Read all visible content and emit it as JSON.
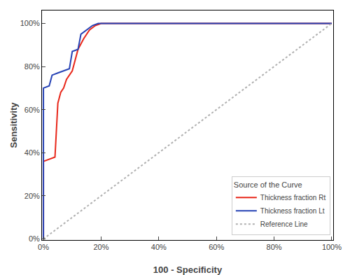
{
  "chart_data": {
    "type": "line",
    "xlabel": "100 - Specificity",
    "ylabel": "Sensitivity",
    "legend_title": "Source of the Curve",
    "series": [
      {
        "name": "Thickness fraction Rt",
        "color": "#e8271a",
        "line_style": "solid",
        "x": [
          0.0,
          0.0,
          0.04,
          0.05,
          0.06,
          0.07,
          0.08,
          0.09,
          0.1,
          0.12,
          0.14,
          0.16,
          0.18,
          0.2,
          0.22,
          1.0
        ],
        "values": [
          0.0,
          0.36,
          0.38,
          0.63,
          0.68,
          0.7,
          0.74,
          0.76,
          0.78,
          0.88,
          0.93,
          0.97,
          0.99,
          1.0,
          1.0,
          1.0
        ]
      },
      {
        "name": "Thickness fraction Lt",
        "color": "#2642b5",
        "line_style": "solid",
        "x": [
          0.0,
          0.0,
          0.02,
          0.03,
          0.05,
          0.07,
          0.09,
          0.1,
          0.12,
          0.13,
          0.15,
          0.17,
          0.19,
          0.22,
          0.25,
          1.0
        ],
        "values": [
          0.0,
          0.7,
          0.71,
          0.76,
          0.77,
          0.78,
          0.79,
          0.87,
          0.88,
          0.95,
          0.97,
          0.99,
          1.0,
          1.0,
          1.0,
          1.0
        ]
      },
      {
        "name": "Reference Line",
        "color": "#b0b0b0",
        "line_style": "dotted",
        "x": [
          0,
          1
        ],
        "values": [
          0,
          1
        ]
      }
    ],
    "xlim": [
      -0.005,
      1.005
    ],
    "ylim": [
      -0.005,
      1.06
    ],
    "xticks": [
      {
        "value": 0.0,
        "label": "0%"
      },
      {
        "value": 0.2,
        "label": "20%"
      },
      {
        "value": 0.4,
        "label": "40%"
      },
      {
        "value": 0.6,
        "label": "60%"
      },
      {
        "value": 0.8,
        "label": "80%"
      },
      {
        "value": 1.0,
        "label": "100%"
      }
    ],
    "yticks": [
      {
        "value": 0.0,
        "label": "0%"
      },
      {
        "value": 0.2,
        "label": "20%"
      },
      {
        "value": 0.4,
        "label": "40%"
      },
      {
        "value": 0.6,
        "label": "60%"
      },
      {
        "value": 0.8,
        "label": "80%"
      },
      {
        "value": 1.0,
        "label": "100%"
      }
    ],
    "grid": false,
    "legend": "lower right"
  }
}
